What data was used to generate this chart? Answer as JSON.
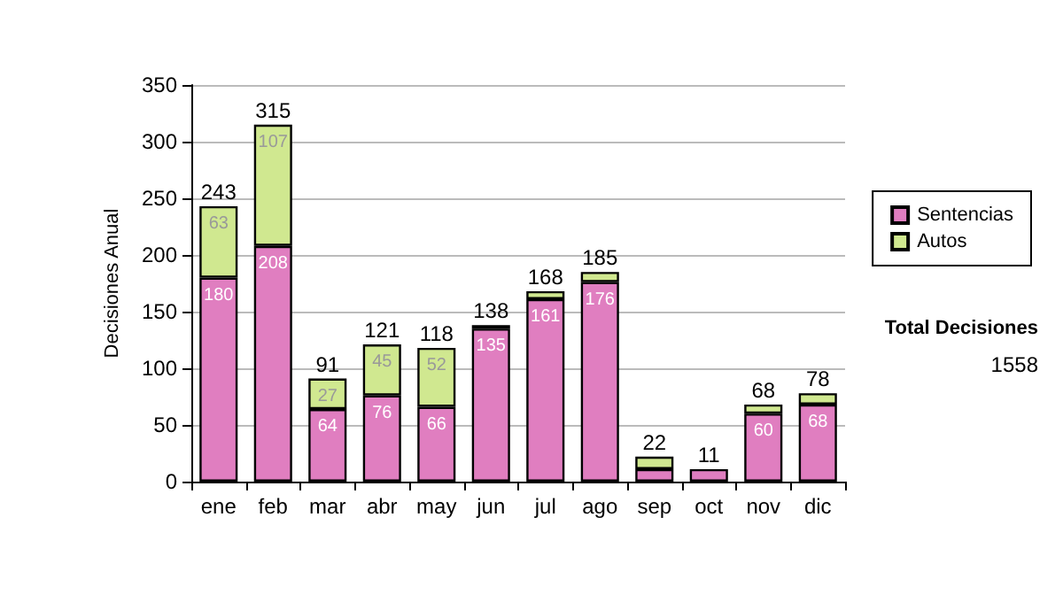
{
  "chart_data": {
    "type": "bar",
    "stacked": true,
    "ylabel": "Decisiones Anual",
    "categories": [
      "ene",
      "feb",
      "mar",
      "abr",
      "may",
      "jun",
      "jul",
      "ago",
      "sep",
      "oct",
      "nov",
      "dic"
    ],
    "series": [
      {
        "name": "Sentencias",
        "color": "#e07ec0",
        "values": [
          180,
          208,
          64,
          76,
          66,
          135,
          161,
          176,
          11,
          11,
          60,
          68
        ],
        "value_labels": [
          "180",
          "208",
          "64",
          "76",
          "66",
          "135",
          "161",
          "176",
          null,
          null,
          "60",
          "68"
        ]
      },
      {
        "name": "Autos",
        "color": "#d0e890",
        "values": [
          63,
          107,
          27,
          45,
          52,
          3,
          7,
          9,
          11,
          null,
          8,
          10
        ],
        "value_labels": [
          "63",
          "107",
          "27",
          "45",
          "52",
          null,
          null,
          null,
          null,
          null,
          null,
          null
        ]
      }
    ],
    "totals": [
      "243",
      "315",
      "91",
      "121",
      "118",
      "138",
      "168",
      "185",
      "22",
      "11",
      "68",
      "78"
    ],
    "ylim": [
      0,
      350
    ],
    "yticks": [
      0,
      50,
      100,
      150,
      200,
      250,
      300,
      350
    ],
    "grid": "y",
    "legend": "right",
    "annotations": [
      "Total Decisiones",
      "1558"
    ]
  }
}
